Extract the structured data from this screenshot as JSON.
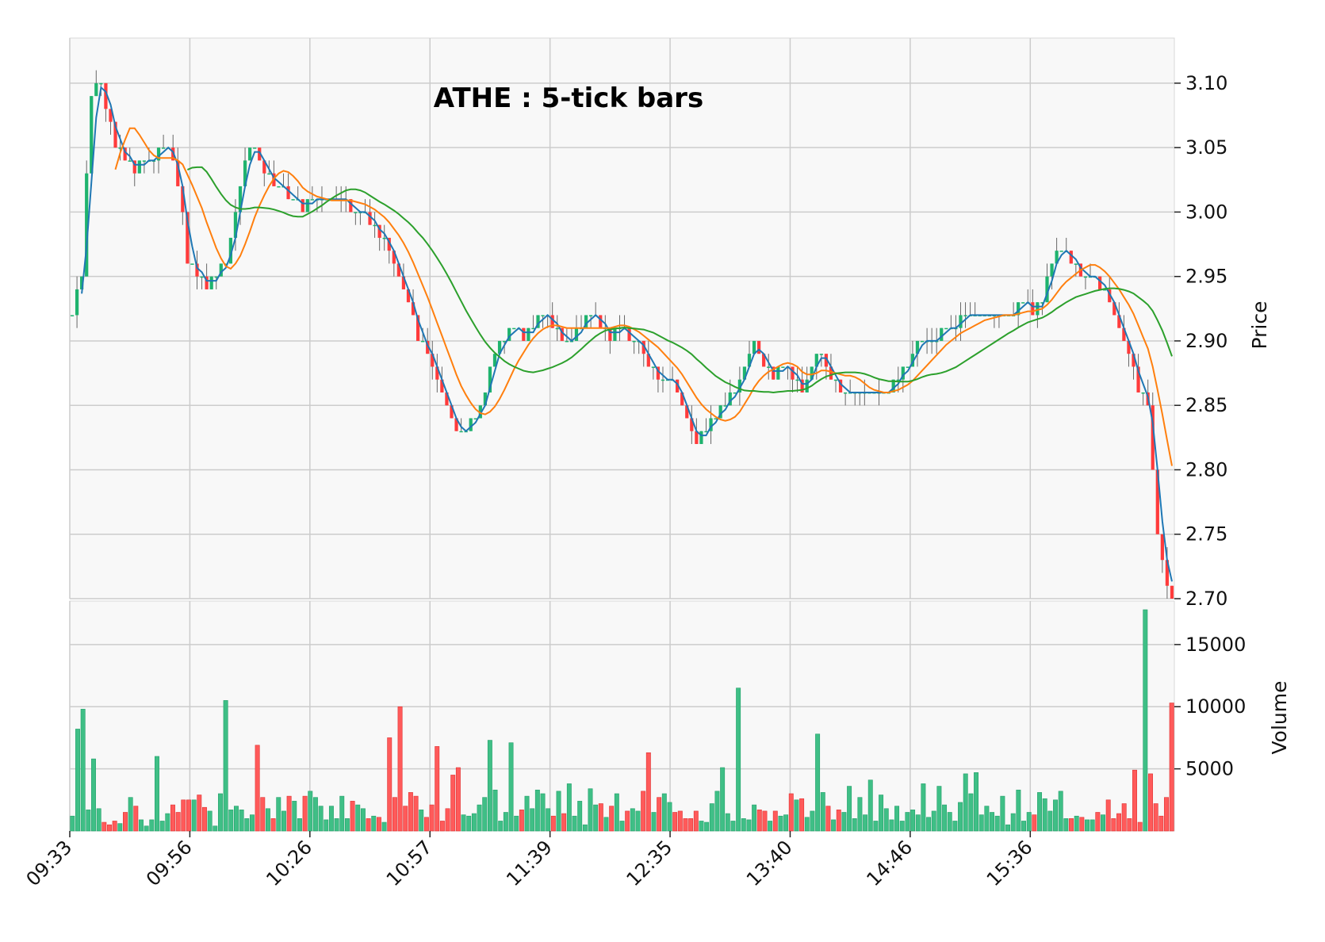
{
  "chart_data": {
    "type": "candlestick",
    "title": "ATHE : 5-tick bars",
    "price_axis": {
      "label": "Price",
      "ylim": [
        2.7,
        3.135
      ],
      "ticks": [
        "3.10",
        "3.05",
        "3.00",
        "2.95",
        "2.90",
        "2.85",
        "2.80",
        "2.75",
        "2.70"
      ],
      "tick_values": [
        3.1,
        3.05,
        3.0,
        2.95,
        2.9,
        2.85,
        2.8,
        2.75,
        2.7
      ]
    },
    "volume_axis": {
      "label": "Volume",
      "ylim": [
        0,
        18500
      ],
      "ticks": [
        "5000",
        "10000",
        "15000"
      ],
      "tick_values": [
        5000,
        10000,
        15000
      ]
    },
    "x_axis": {
      "tick_labels": [
        "09:33",
        "09:56",
        "10:26",
        "10:57",
        "11:39",
        "12:35",
        "13:40",
        "14:46",
        "15:36"
      ],
      "tick_bar_index": [
        0,
        25,
        50,
        75,
        100,
        125,
        150,
        175,
        200
      ]
    },
    "grid": true,
    "colors": {
      "up": "#26a69a",
      "up_fill": "#1fb36e",
      "down": "#ff3b3b",
      "up_volume": "#3fbf86",
      "down_volume": "#ff5a5a",
      "ma_fast": "#1f77b4",
      "ma_mid": "#ff7f0e",
      "ma_slow": "#2ca02c",
      "panel_bg": "#f8f8f8",
      "grid": "#cccccc"
    },
    "moving_averages": [
      {
        "period": 3,
        "color_key": "ma_fast"
      },
      {
        "period": 10,
        "color_key": "ma_mid"
      },
      {
        "period": 25,
        "color_key": "ma_slow"
      }
    ],
    "close_anchors": [
      [
        0,
        2.92
      ],
      [
        2,
        2.95
      ],
      [
        3,
        3.03
      ],
      [
        4,
        3.09
      ],
      [
        6,
        3.1
      ],
      [
        7,
        3.08
      ],
      [
        9,
        3.05
      ],
      [
        11,
        3.04
      ],
      [
        13,
        3.03
      ],
      [
        15,
        3.04
      ],
      [
        17,
        3.04
      ],
      [
        19,
        3.05
      ],
      [
        21,
        3.04
      ],
      [
        23,
        3.0
      ],
      [
        24,
        2.96
      ],
      [
        26,
        2.95
      ],
      [
        28,
        2.94
      ],
      [
        30,
        2.95
      ],
      [
        32,
        2.96
      ],
      [
        34,
        3.0
      ],
      [
        36,
        3.04
      ],
      [
        38,
        3.05
      ],
      [
        40,
        3.03
      ],
      [
        42,
        3.02
      ],
      [
        44,
        3.02
      ],
      [
        46,
        3.01
      ],
      [
        48,
        3.0
      ],
      [
        50,
        3.01
      ],
      [
        52,
        3.01
      ],
      [
        54,
        3.01
      ],
      [
        56,
        3.01
      ],
      [
        58,
        3.0
      ],
      [
        60,
        3.0
      ],
      [
        62,
        2.99
      ],
      [
        64,
        2.98
      ],
      [
        66,
        2.97
      ],
      [
        68,
        2.95
      ],
      [
        70,
        2.93
      ],
      [
        72,
        2.9
      ],
      [
        74,
        2.89
      ],
      [
        76,
        2.87
      ],
      [
        78,
        2.85
      ],
      [
        80,
        2.83
      ],
      [
        82,
        2.83
      ],
      [
        84,
        2.84
      ],
      [
        86,
        2.86
      ],
      [
        88,
        2.89
      ],
      [
        90,
        2.9
      ],
      [
        92,
        2.91
      ],
      [
        94,
        2.9
      ],
      [
        96,
        2.91
      ],
      [
        98,
        2.92
      ],
      [
        100,
        2.91
      ],
      [
        102,
        2.9
      ],
      [
        104,
        2.9
      ],
      [
        106,
        2.91
      ],
      [
        108,
        2.92
      ],
      [
        110,
        2.91
      ],
      [
        112,
        2.9
      ],
      [
        114,
        2.91
      ],
      [
        116,
        2.9
      ],
      [
        118,
        2.9
      ],
      [
        120,
        2.88
      ],
      [
        122,
        2.87
      ],
      [
        124,
        2.87
      ],
      [
        126,
        2.86
      ],
      [
        128,
        2.84
      ],
      [
        130,
        2.82
      ],
      [
        132,
        2.83
      ],
      [
        134,
        2.84
      ],
      [
        136,
        2.85
      ],
      [
        138,
        2.86
      ],
      [
        140,
        2.88
      ],
      [
        142,
        2.9
      ],
      [
        144,
        2.88
      ],
      [
        146,
        2.87
      ],
      [
        148,
        2.88
      ],
      [
        150,
        2.87
      ],
      [
        152,
        2.86
      ],
      [
        154,
        2.88
      ],
      [
        156,
        2.89
      ],
      [
        158,
        2.87
      ],
      [
        160,
        2.86
      ],
      [
        162,
        2.86
      ],
      [
        164,
        2.86
      ],
      [
        166,
        2.86
      ],
      [
        168,
        2.86
      ],
      [
        170,
        2.86
      ],
      [
        172,
        2.87
      ],
      [
        174,
        2.88
      ],
      [
        176,
        2.9
      ],
      [
        178,
        2.9
      ],
      [
        180,
        2.9
      ],
      [
        182,
        2.91
      ],
      [
        184,
        2.91
      ],
      [
        186,
        2.92
      ],
      [
        188,
        2.92
      ],
      [
        190,
        2.92
      ],
      [
        192,
        2.92
      ],
      [
        194,
        2.92
      ],
      [
        196,
        2.92
      ],
      [
        198,
        2.93
      ],
      [
        200,
        2.92
      ],
      [
        202,
        2.93
      ],
      [
        204,
        2.96
      ],
      [
        206,
        2.97
      ],
      [
        208,
        2.96
      ],
      [
        210,
        2.95
      ],
      [
        212,
        2.95
      ],
      [
        214,
        2.94
      ],
      [
        216,
        2.93
      ],
      [
        218,
        2.91
      ],
      [
        220,
        2.89
      ],
      [
        222,
        2.86
      ],
      [
        224,
        2.85
      ],
      [
        225,
        2.8
      ],
      [
        226,
        2.75
      ],
      [
        228,
        2.71
      ],
      [
        229,
        2.7
      ]
    ],
    "volume_anchors": [
      [
        0,
        1200
      ],
      [
        1,
        8200
      ],
      [
        2,
        9800
      ],
      [
        3,
        1700
      ],
      [
        4,
        5800
      ],
      [
        5,
        1800
      ],
      [
        6,
        700
      ],
      [
        7,
        500
      ],
      [
        8,
        800
      ],
      [
        9,
        600
      ],
      [
        10,
        1500
      ],
      [
        11,
        2700
      ],
      [
        12,
        2000
      ],
      [
        13,
        900
      ],
      [
        14,
        400
      ],
      [
        15,
        900
      ],
      [
        16,
        6000
      ],
      [
        17,
        800
      ],
      [
        18,
        1400
      ],
      [
        19,
        2100
      ],
      [
        20,
        1500
      ],
      [
        21,
        2500
      ],
      [
        22,
        2500
      ],
      [
        23,
        2500
      ],
      [
        24,
        2900
      ],
      [
        25,
        1900
      ],
      [
        26,
        1600
      ],
      [
        27,
        400
      ],
      [
        28,
        3000
      ],
      [
        29,
        10500
      ],
      [
        30,
        1700
      ],
      [
        31,
        2000
      ],
      [
        32,
        1700
      ],
      [
        33,
        1000
      ],
      [
        34,
        1300
      ],
      [
        35,
        6900
      ],
      [
        36,
        2700
      ],
      [
        37,
        1800
      ],
      [
        38,
        1000
      ],
      [
        39,
        2700
      ],
      [
        40,
        1600
      ],
      [
        41,
        2800
      ],
      [
        42,
        2400
      ],
      [
        43,
        1000
      ],
      [
        44,
        2800
      ],
      [
        45,
        3200
      ],
      [
        46,
        2700
      ],
      [
        47,
        2000
      ],
      [
        48,
        900
      ],
      [
        49,
        2000
      ],
      [
        50,
        1000
      ],
      [
        51,
        2800
      ],
      [
        52,
        1000
      ],
      [
        53,
        2400
      ],
      [
        54,
        2100
      ],
      [
        55,
        1800
      ],
      [
        56,
        1000
      ],
      [
        57,
        1200
      ],
      [
        58,
        1100
      ],
      [
        59,
        700
      ],
      [
        60,
        7500
      ],
      [
        61,
        2700
      ],
      [
        62,
        10000
      ],
      [
        63,
        2000
      ],
      [
        64,
        3100
      ],
      [
        65,
        2800
      ],
      [
        66,
        1700
      ],
      [
        67,
        1100
      ],
      [
        68,
        2100
      ],
      [
        69,
        6800
      ],
      [
        70,
        800
      ],
      [
        71,
        1800
      ],
      [
        72,
        4500
      ],
      [
        73,
        5100
      ],
      [
        74,
        1300
      ],
      [
        75,
        1200
      ],
      [
        76,
        1400
      ],
      [
        77,
        2100
      ],
      [
        78,
        2700
      ],
      [
        79,
        7300
      ],
      [
        80,
        3300
      ],
      [
        81,
        800
      ],
      [
        82,
        1500
      ],
      [
        83,
        7100
      ],
      [
        84,
        1200
      ],
      [
        85,
        1700
      ],
      [
        86,
        2800
      ],
      [
        87,
        1800
      ],
      [
        88,
        3300
      ],
      [
        89,
        3000
      ],
      [
        90,
        1800
      ],
      [
        91,
        1200
      ],
      [
        92,
        3200
      ],
      [
        93,
        1400
      ],
      [
        94,
        3800
      ],
      [
        95,
        1200
      ],
      [
        96,
        2400
      ],
      [
        97,
        500
      ],
      [
        98,
        3400
      ],
      [
        99,
        2100
      ],
      [
        100,
        2200
      ],
      [
        101,
        1100
      ],
      [
        102,
        2000
      ],
      [
        103,
        3000
      ],
      [
        104,
        800
      ],
      [
        105,
        1600
      ],
      [
        106,
        1800
      ],
      [
        107,
        1600
      ],
      [
        108,
        3200
      ],
      [
        109,
        6300
      ],
      [
        110,
        1500
      ],
      [
        111,
        2700
      ],
      [
        112,
        3000
      ],
      [
        113,
        2300
      ],
      [
        114,
        1500
      ],
      [
        115,
        1600
      ],
      [
        116,
        1000
      ],
      [
        117,
        1000
      ],
      [
        118,
        1600
      ],
      [
        119,
        800
      ],
      [
        120,
        700
      ],
      [
        121,
        2200
      ],
      [
        122,
        3200
      ],
      [
        123,
        5100
      ],
      [
        124,
        1400
      ],
      [
        125,
        800
      ],
      [
        126,
        11500
      ],
      [
        127,
        1000
      ],
      [
        128,
        900
      ],
      [
        129,
        2100
      ],
      [
        130,
        1700
      ],
      [
        131,
        1600
      ],
      [
        132,
        800
      ],
      [
        133,
        1600
      ],
      [
        134,
        1200
      ],
      [
        135,
        1300
      ],
      [
        136,
        3000
      ],
      [
        137,
        2500
      ],
      [
        138,
        2600
      ],
      [
        139,
        1100
      ],
      [
        140,
        1600
      ],
      [
        141,
        7800
      ],
      [
        142,
        3100
      ],
      [
        143,
        2000
      ],
      [
        144,
        900
      ],
      [
        145,
        1700
      ],
      [
        146,
        1500
      ],
      [
        147,
        3600
      ],
      [
        148,
        1000
      ],
      [
        149,
        2700
      ],
      [
        150,
        1300
      ],
      [
        151,
        4100
      ],
      [
        152,
        800
      ],
      [
        153,
        2900
      ],
      [
        154,
        1800
      ],
      [
        155,
        900
      ],
      [
        156,
        2000
      ],
      [
        157,
        800
      ],
      [
        158,
        1500
      ],
      [
        159,
        1700
      ],
      [
        160,
        1300
      ],
      [
        161,
        3800
      ],
      [
        162,
        1100
      ],
      [
        163,
        1600
      ],
      [
        164,
        3600
      ],
      [
        165,
        2100
      ],
      [
        166,
        1500
      ],
      [
        167,
        800
      ],
      [
        168,
        2300
      ],
      [
        169,
        4600
      ],
      [
        170,
        3000
      ],
      [
        171,
        4700
      ],
      [
        172,
        1300
      ],
      [
        173,
        2000
      ],
      [
        174,
        1500
      ],
      [
        175,
        1200
      ],
      [
        176,
        2800
      ],
      [
        177,
        500
      ],
      [
        178,
        1400
      ],
      [
        179,
        3300
      ],
      [
        180,
        800
      ],
      [
        181,
        1500
      ],
      [
        182,
        1300
      ],
      [
        183,
        3100
      ],
      [
        184,
        2600
      ],
      [
        185,
        1600
      ],
      [
        186,
        2500
      ],
      [
        187,
        3200
      ],
      [
        188,
        1000
      ],
      [
        189,
        1000
      ],
      [
        190,
        1200
      ],
      [
        191,
        1100
      ],
      [
        192,
        900
      ],
      [
        193,
        900
      ],
      [
        194,
        1500
      ],
      [
        195,
        1300
      ],
      [
        196,
        2500
      ],
      [
        197,
        1000
      ],
      [
        198,
        1400
      ],
      [
        199,
        2200
      ],
      [
        200,
        1000
      ],
      [
        201,
        4900
      ],
      [
        202,
        700
      ],
      [
        203,
        17800
      ],
      [
        204,
        4600
      ],
      [
        205,
        2200
      ],
      [
        206,
        1200
      ],
      [
        207,
        2700
      ],
      [
        208,
        10300
      ]
    ],
    "n_bars": 230
  }
}
